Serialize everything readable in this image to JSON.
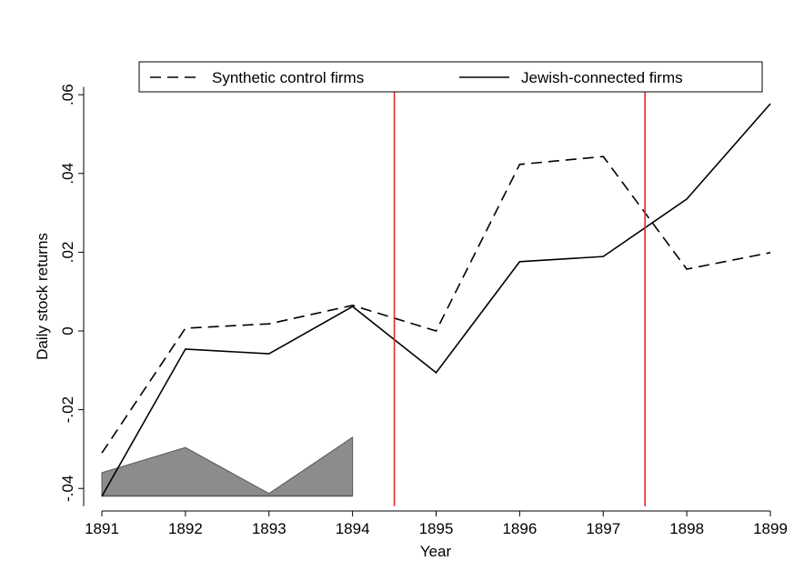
{
  "chart_data": {
    "type": "line",
    "x_label": "Year",
    "y_label": "Daily stock returns",
    "xlim": [
      1891,
      1899
    ],
    "xticks": [
      1891,
      1892,
      1893,
      1894,
      1895,
      1896,
      1897,
      1898,
      1899
    ],
    "ylim": [
      -0.0445,
      0.062
    ],
    "yticks": [
      {
        "value": -0.04,
        "label": "-.04"
      },
      {
        "value": -0.02,
        "label": "-.02"
      },
      0,
      {
        "value": 0.02,
        "label": ".02"
      },
      {
        "value": 0.04,
        "label": ".04"
      },
      {
        "value": 0.06,
        "label": ".06"
      }
    ],
    "legend": "top",
    "vlines": [
      1894.5,
      1897.5
    ],
    "vline_color": "#e8272a",
    "series": [
      {
        "name": "Synthetic control firms",
        "color": "#000000",
        "dash": true,
        "x": [
          1891,
          1892,
          1893,
          1894,
          1895,
          1896,
          1897,
          1898,
          1899
        ],
        "values": [
          -0.031,
          0.0007,
          0.0018,
          0.0065,
          0.0,
          0.0423,
          0.0443,
          0.0157,
          0.0199
        ]
      },
      {
        "name": "Jewish-connected firms",
        "color": "#000000",
        "dash": false,
        "x": [
          1891,
          1892,
          1893,
          1894,
          1895,
          1896,
          1897,
          1898,
          1899
        ],
        "values": [
          -0.042,
          -0.0046,
          -0.0058,
          0.0062,
          -0.0106,
          0.0176,
          0.0189,
          0.0335,
          0.0577
        ]
      },
      {
        "type": "area",
        "color": "#8c8c8c",
        "x": [
          1891,
          1892,
          1893,
          1894
        ],
        "values": [
          -0.036,
          -0.0296,
          -0.0413,
          -0.027
        ],
        "base": -0.0419
      }
    ]
  }
}
